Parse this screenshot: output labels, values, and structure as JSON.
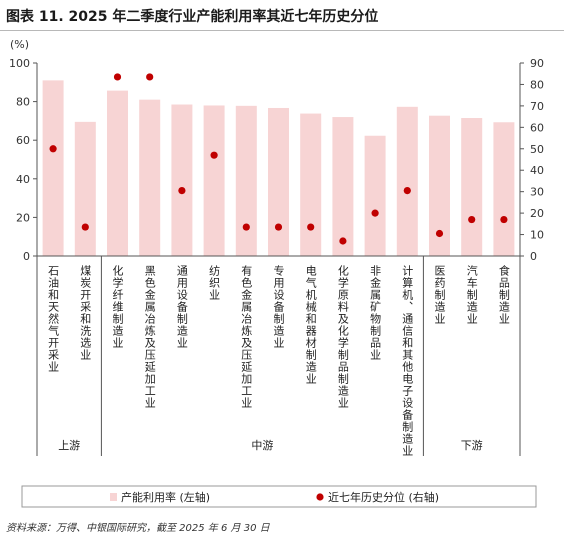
{
  "title": "图表 11. 2025 年二季度行业产能利用率其近七年历史分位",
  "source": "资料来源：万得、中银国际研究，截至 2025 年 6 月 30 日",
  "colors": {
    "bar": "#f7d4d4",
    "dot": "#c00000",
    "axis": "#555555"
  },
  "chart_data": {
    "type": "bar",
    "left_unit": "(%)",
    "categories": [
      "石油和天然气开采业",
      "煤炭开采和洗选业",
      "化学纤维制造业",
      "黑色金属冶炼及压延加工业",
      "通用设备制造业",
      "纺织业",
      "有色金属冶炼及压延加工业",
      "专用设备制造业",
      "电气机械和器材制造业",
      "化学原料及化学制品制造业",
      "非金属矿物制品业",
      "计算机、通信和其他电子设备制造业",
      "医药制造业",
      "汽车制造业",
      "食品制造业"
    ],
    "groups": [
      {
        "label": "上游",
        "count": 2
      },
      {
        "label": "中游",
        "count": 10
      },
      {
        "label": "下游",
        "count": 3
      }
    ],
    "series": [
      {
        "name": "产能利用率 (左轴)",
        "axis": "left",
        "kind": "bar",
        "values": [
          91.0,
          69.5,
          85.7,
          81.0,
          78.5,
          78.0,
          77.8,
          76.7,
          73.8,
          72.0,
          62.3,
          77.3,
          72.7,
          71.5,
          69.3
        ]
      },
      {
        "name": "近七年历史分位 (右轴)",
        "axis": "right",
        "kind": "scatter",
        "values": [
          50,
          13.5,
          83.5,
          83.5,
          30.5,
          47,
          13.5,
          13.5,
          13.5,
          7,
          20,
          30.5,
          10.5,
          17,
          17
        ]
      }
    ],
    "ylim_left": [
      0,
      100
    ],
    "yticks_left": [
      0,
      20,
      40,
      60,
      80,
      100
    ],
    "ylim_right": [
      0,
      90
    ],
    "yticks_right": [
      0,
      10,
      20,
      30,
      40,
      50,
      60,
      70,
      80,
      90
    ],
    "legend_position": "bottom",
    "grid": false
  }
}
